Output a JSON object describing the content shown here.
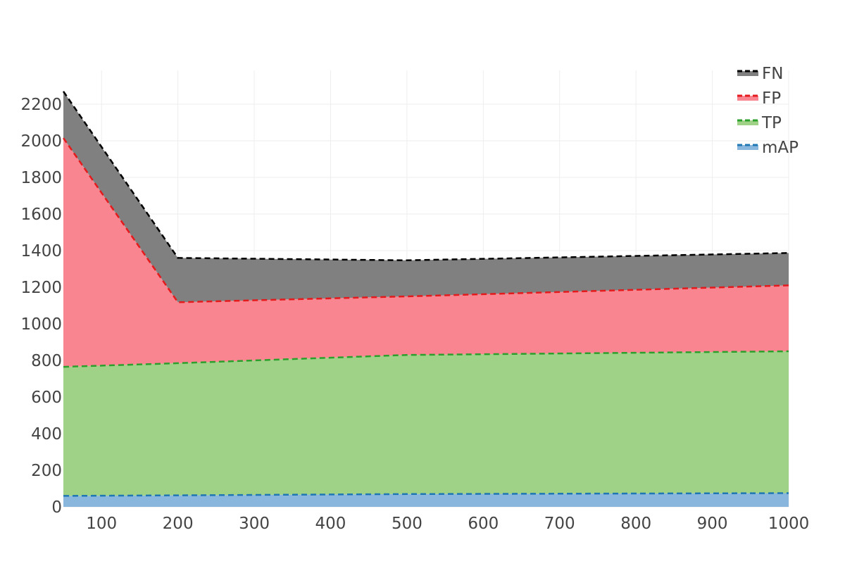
{
  "chart_data": {
    "type": "area",
    "stacked": true,
    "title": "",
    "xlabel": "",
    "ylabel": "",
    "x": [
      50,
      200,
      500,
      1000
    ],
    "xlim": [
      50,
      1000
    ],
    "ylim": [
      0,
      2300
    ],
    "xticks": [
      100,
      200,
      300,
      400,
      500,
      600,
      700,
      800,
      900,
      1000
    ],
    "yticks": [
      0,
      200,
      400,
      600,
      800,
      1000,
      1200,
      1400,
      1600,
      1800,
      2000,
      2200
    ],
    "grid": true,
    "legend_position": "top-right",
    "series": [
      {
        "name": "mAP",
        "values": [
          60,
          63,
          70,
          75
        ],
        "fill": "#89b6dd",
        "line": "#1f77b4"
      },
      {
        "name": "TP",
        "values": [
          705,
          722,
          760,
          775
        ],
        "fill": "#9fd287",
        "line": "#2ca02c"
      },
      {
        "name": "FP",
        "values": [
          1250,
          333,
          320,
          360
        ],
        "fill": "#f8858f",
        "line": "#e41a1c"
      },
      {
        "name": "FN",
        "values": [
          255,
          242,
          197,
          177
        ],
        "fill": "#808080",
        "line": "#000000"
      }
    ]
  }
}
